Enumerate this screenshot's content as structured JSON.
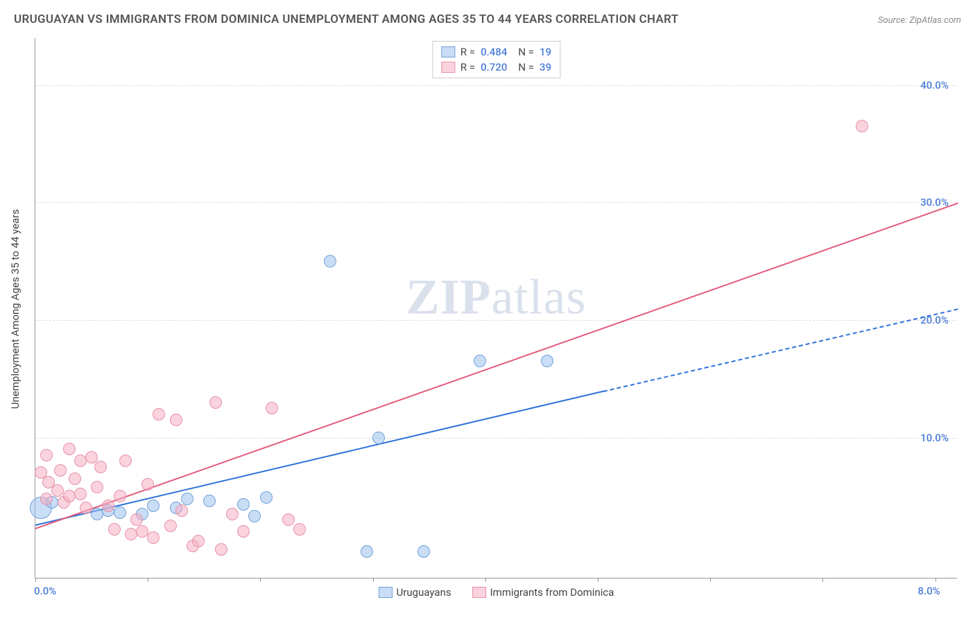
{
  "title": "URUGUAYAN VS IMMIGRANTS FROM DOMINICA UNEMPLOYMENT AMONG AGES 35 TO 44 YEARS CORRELATION CHART",
  "source": "Source: ZipAtlas.com",
  "watermark_zip": "ZIP",
  "watermark_atlas": "atlas",
  "chart": {
    "type": "scatter",
    "background_color": "#ffffff",
    "grid_color": "#dddddd",
    "axis_color": "#999999",
    "ylabel": "Unemployment Among Ages 35 to 44 years",
    "label_fontsize": 15,
    "label_color": "#444444",
    "tick_color": "#4a7dd8",
    "xlim": [
      0,
      8.2
    ],
    "ylim": [
      -2,
      44
    ],
    "x_ticks": [
      0,
      1,
      2,
      3,
      4,
      5,
      6,
      7,
      8
    ],
    "x_tick_labels": {
      "0": "0.0%",
      "8": "8.0%"
    },
    "y_gridlines": [
      10,
      20,
      30,
      40
    ],
    "y_tick_labels": {
      "10": "10.0%",
      "20": "20.0%",
      "30": "30.0%",
      "40": "40.0%"
    },
    "series": [
      {
        "name": "Uruguayans",
        "fill_color": "rgba(157, 195, 238, 0.55)",
        "stroke_color": "#6f9fd8",
        "trend_color": "#2d72d9",
        "marker_radius": 9,
        "R": "0.484",
        "N": "19",
        "trend": {
          "x1": 0.0,
          "y1": 2.6,
          "x2": 5.05,
          "y2": 14.0,
          "extend_x2": 8.2,
          "extend_y2": 21.0,
          "dashed_from_x": 5.05
        },
        "points": [
          {
            "x": 0.05,
            "y": 4.0,
            "r": 16
          },
          {
            "x": 0.15,
            "y": 4.5
          },
          {
            "x": 0.55,
            "y": 3.5
          },
          {
            "x": 0.65,
            "y": 3.8
          },
          {
            "x": 0.75,
            "y": 3.6
          },
          {
            "x": 0.95,
            "y": 3.5
          },
          {
            "x": 1.05,
            "y": 4.2
          },
          {
            "x": 1.25,
            "y": 4.0
          },
          {
            "x": 1.35,
            "y": 4.8
          },
          {
            "x": 1.55,
            "y": 4.6
          },
          {
            "x": 1.85,
            "y": 4.3
          },
          {
            "x": 1.95,
            "y": 3.3
          },
          {
            "x": 2.05,
            "y": 4.9
          },
          {
            "x": 2.95,
            "y": 0.3
          },
          {
            "x": 3.05,
            "y": 10.0
          },
          {
            "x": 3.45,
            "y": 0.3
          },
          {
            "x": 3.95,
            "y": 16.5
          },
          {
            "x": 4.55,
            "y": 16.5
          },
          {
            "x": 2.62,
            "y": 25.0
          }
        ]
      },
      {
        "name": "Immigrants from Dominica",
        "fill_color": "rgba(245, 175, 195, 0.55)",
        "stroke_color": "#e690a8",
        "trend_color": "#e25b7d",
        "marker_radius": 9,
        "R": "0.720",
        "N": "39",
        "trend": {
          "x1": 0.0,
          "y1": 2.3,
          "x2": 8.2,
          "y2": 30.0
        },
        "points": [
          {
            "x": 0.05,
            "y": 7.0
          },
          {
            "x": 0.1,
            "y": 8.5
          },
          {
            "x": 0.1,
            "y": 4.8
          },
          {
            "x": 0.12,
            "y": 6.2
          },
          {
            "x": 0.2,
            "y": 5.5
          },
          {
            "x": 0.25,
            "y": 4.5
          },
          {
            "x": 0.22,
            "y": 7.2
          },
          {
            "x": 0.3,
            "y": 5.0
          },
          {
            "x": 0.3,
            "y": 9.0
          },
          {
            "x": 0.35,
            "y": 6.5
          },
          {
            "x": 0.4,
            "y": 8.0
          },
          {
            "x": 0.4,
            "y": 5.2
          },
          {
            "x": 0.45,
            "y": 4.0
          },
          {
            "x": 0.5,
            "y": 8.3
          },
          {
            "x": 0.55,
            "y": 5.8
          },
          {
            "x": 0.58,
            "y": 7.5
          },
          {
            "x": 0.65,
            "y": 4.2
          },
          {
            "x": 0.7,
            "y": 2.2
          },
          {
            "x": 0.75,
            "y": 5.0
          },
          {
            "x": 0.8,
            "y": 8.0
          },
          {
            "x": 0.85,
            "y": 1.8
          },
          {
            "x": 0.9,
            "y": 3.0
          },
          {
            "x": 0.95,
            "y": 2.0
          },
          {
            "x": 1.0,
            "y": 6.0
          },
          {
            "x": 1.05,
            "y": 1.5
          },
          {
            "x": 1.1,
            "y": 12.0
          },
          {
            "x": 1.2,
            "y": 2.5
          },
          {
            "x": 1.25,
            "y": 11.5
          },
          {
            "x": 1.3,
            "y": 3.8
          },
          {
            "x": 1.4,
            "y": 0.8
          },
          {
            "x": 1.45,
            "y": 1.2
          },
          {
            "x": 1.6,
            "y": 13.0
          },
          {
            "x": 1.65,
            "y": 0.5
          },
          {
            "x": 1.75,
            "y": 3.5
          },
          {
            "x": 1.85,
            "y": 2.0
          },
          {
            "x": 2.1,
            "y": 12.5
          },
          {
            "x": 2.25,
            "y": 3.0
          },
          {
            "x": 2.35,
            "y": 2.2
          },
          {
            "x": 7.35,
            "y": 36.5
          }
        ]
      }
    ]
  },
  "legend_box": {
    "r_label": "R =",
    "n_label": "N ="
  },
  "bottom_legend": [
    {
      "label": "Uruguayans",
      "series_idx": 0
    },
    {
      "label": "Immigrants from Dominica",
      "series_idx": 1
    }
  ]
}
